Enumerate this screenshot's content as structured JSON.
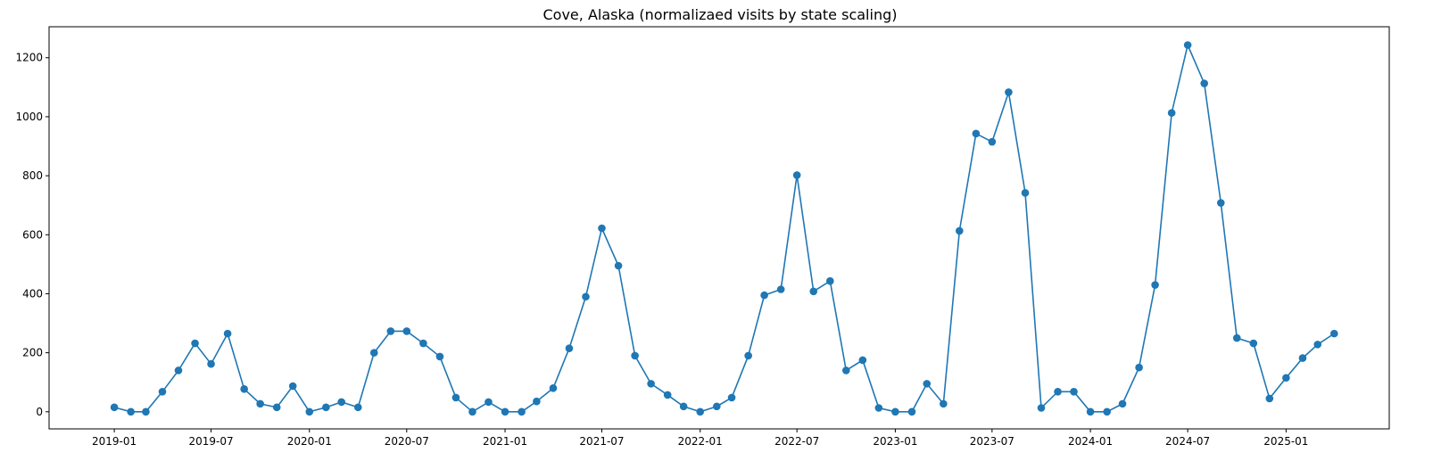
{
  "chart_data": {
    "type": "line",
    "title": "Cove, Alaska (normalizaed visits by state scaling)",
    "xlabel": "",
    "ylabel": "",
    "marker": "circle",
    "color": "#1f77b4",
    "grid": false,
    "legend": "none",
    "xlim": [
      "2018-09-01",
      "2025-07-13"
    ],
    "ylim": [
      -58,
      1305
    ],
    "x_ticks": [
      "2019-01",
      "2019-07",
      "2020-01",
      "2020-07",
      "2021-01",
      "2021-07",
      "2022-01",
      "2022-07",
      "2023-01",
      "2023-07",
      "2024-01",
      "2024-07",
      "2025-01"
    ],
    "y_ticks": [
      0,
      200,
      400,
      600,
      800,
      1000,
      1200
    ],
    "series": [
      {
        "x": [
          "2019-01",
          "2019-02",
          "2019-03",
          "2019-04",
          "2019-05",
          "2019-06",
          "2019-07",
          "2019-08",
          "2019-09",
          "2019-10",
          "2019-11",
          "2019-12",
          "2020-01",
          "2020-02",
          "2020-03",
          "2020-04",
          "2020-05",
          "2020-06",
          "2020-07",
          "2020-08",
          "2020-09",
          "2020-10",
          "2020-11",
          "2020-12",
          "2021-01",
          "2021-02",
          "2021-03",
          "2021-04",
          "2021-05",
          "2021-06",
          "2021-07",
          "2021-08",
          "2021-09",
          "2021-10",
          "2021-11",
          "2021-12",
          "2022-01",
          "2022-02",
          "2022-03",
          "2022-04",
          "2022-05",
          "2022-06",
          "2022-07",
          "2022-08",
          "2022-09",
          "2022-10",
          "2022-11",
          "2022-12",
          "2023-01",
          "2023-02",
          "2023-03",
          "2023-04",
          "2023-05",
          "2023-06",
          "2023-07",
          "2023-08",
          "2023-09",
          "2023-10",
          "2023-11",
          "2023-12",
          "2024-01",
          "2024-02",
          "2024-03",
          "2024-04",
          "2024-05",
          "2024-06",
          "2024-07",
          "2024-08",
          "2024-09",
          "2024-10",
          "2024-11",
          "2024-12",
          "2025-01",
          "2025-02",
          "2025-03",
          "2025-04"
        ],
        "values": [
          15,
          0,
          0,
          68,
          140,
          232,
          162,
          265,
          77,
          27,
          15,
          87,
          0,
          15,
          33,
          15,
          200,
          273,
          273,
          232,
          187,
          48,
          0,
          33,
          0,
          0,
          35,
          80,
          215,
          390,
          622,
          495,
          190,
          95,
          57,
          18,
          0,
          18,
          48,
          190,
          395,
          415,
          802,
          408,
          443,
          140,
          175,
          13,
          0,
          0,
          95,
          27,
          613,
          943,
          915,
          1083,
          742,
          13,
          68,
          68,
          0,
          0,
          27,
          150,
          430,
          1013,
          1243,
          1113,
          708,
          250,
          232,
          45,
          115,
          182,
          228,
          265
        ]
      }
    ]
  }
}
